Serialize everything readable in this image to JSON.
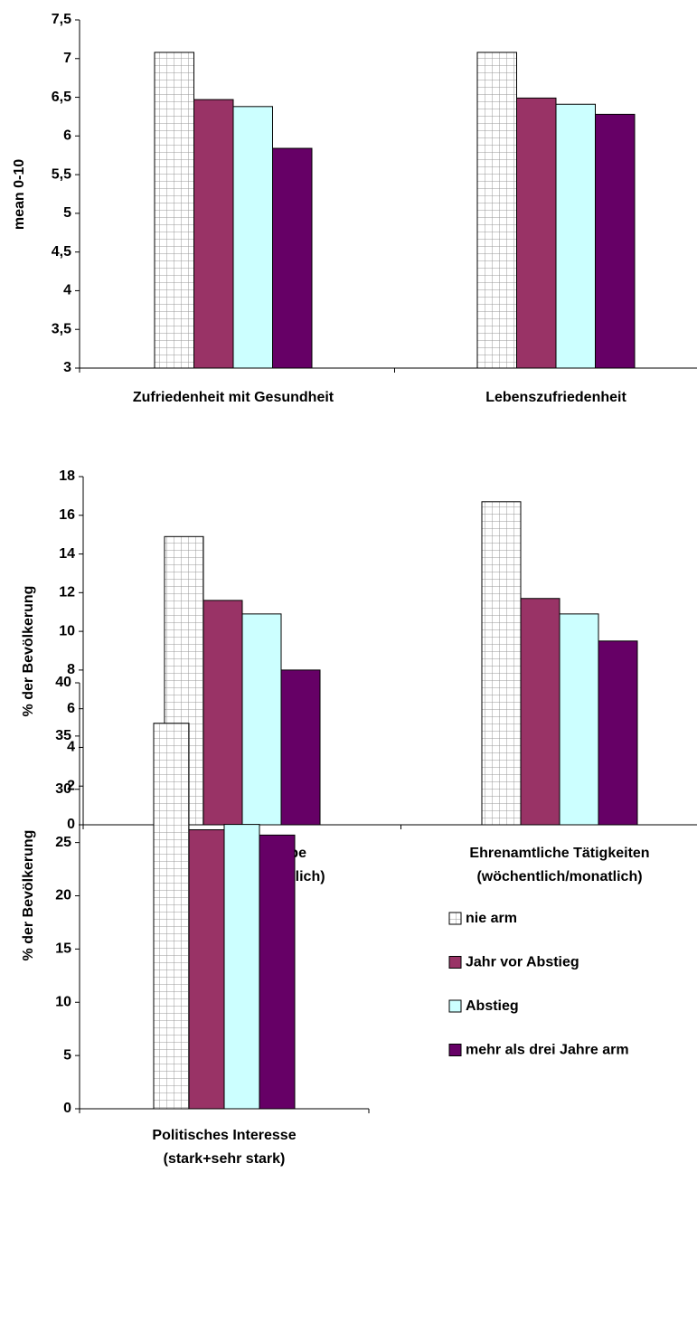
{
  "chart_data": [
    {
      "type": "bar",
      "ylabel": "mean 0-10",
      "categories": [
        [
          "Zufriedenheit mit Gesundheit"
        ],
        [
          "Lebenszufriedenheit"
        ]
      ],
      "ylim": [
        3,
        7.5
      ],
      "yticks": [
        3,
        {
          "value": 3.5,
          "label": "3,5"
        },
        4,
        {
          "value": 4.5,
          "label": "4,5"
        },
        5,
        {
          "value": 5.5,
          "label": "5,5"
        },
        6,
        {
          "value": 6.5,
          "label": "6,5"
        },
        7,
        {
          "value": 7.5,
          "label": "7,5"
        }
      ],
      "series": [
        {
          "color": "#ffffff",
          "pattern": "grid",
          "values": [
            7.08,
            7.08
          ]
        },
        {
          "color": "#993366",
          "values": [
            6.47,
            6.49
          ]
        },
        {
          "color": "#ccffff",
          "values": [
            6.38,
            6.41
          ]
        },
        {
          "color": "#660066",
          "values": [
            5.84,
            6.28
          ]
        }
      ]
    },
    {
      "type": "bar",
      "ylabel": "% der Bevölkerung",
      "categories": [
        [
          "Kulturelle Teilhabe",
          "(wöchentlich/monatlich)"
        ],
        [
          "Ehrenamtliche Tätigkeiten",
          "(wöchentlich/monatlich)"
        ]
      ],
      "ylim": [
        0,
        18
      ],
      "yticks": [
        0,
        2,
        4,
        6,
        8,
        10,
        12,
        14,
        16,
        18
      ],
      "series": [
        {
          "color": "#ffffff",
          "pattern": "grid",
          "values": [
            14.9,
            16.7
          ]
        },
        {
          "color": "#993366",
          "values": [
            11.6,
            11.7
          ]
        },
        {
          "color": "#ccffff",
          "values": [
            10.9,
            10.9
          ]
        },
        {
          "color": "#660066",
          "values": [
            8.0,
            9.5
          ]
        }
      ]
    },
    {
      "type": "bar",
      "ylabel": "% der Bevölkerung",
      "categories": [
        [
          "Politisches Interesse",
          "(stark+sehr stark)"
        ]
      ],
      "ylim": [
        0,
        40
      ],
      "yticks": [
        0,
        5,
        10,
        15,
        20,
        25,
        30,
        35,
        40
      ],
      "legend": "right",
      "series": [
        {
          "name": "nie arm",
          "color": "#ffffff",
          "pattern": "grid",
          "values": [
            36.2
          ]
        },
        {
          "name": "Jahr vor Abstieg",
          "color": "#993366",
          "values": [
            26.2
          ]
        },
        {
          "name": "Abstieg",
          "color": "#ccffff",
          "values": [
            26.7
          ]
        },
        {
          "name": "mehr als drei Jahre arm",
          "color": "#660066",
          "values": [
            25.7
          ]
        }
      ]
    }
  ]
}
